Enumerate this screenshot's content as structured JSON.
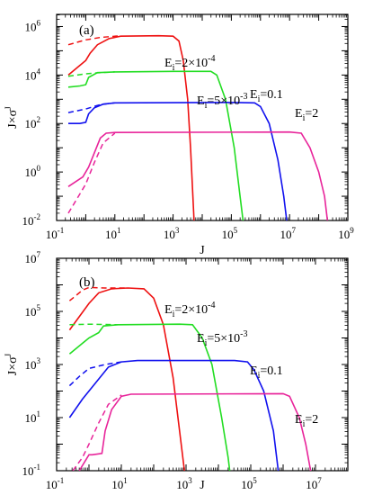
{
  "chart_data": [
    {
      "type": "line",
      "panel_label": "(a)",
      "xlabel": "J",
      "ylabel": {
        "base": "J×σ",
        "sup": "J"
      },
      "x_scale": "log",
      "y_scale": "log",
      "xlim_exp": [
        -1,
        9
      ],
      "ylim_exp": [
        -2,
        6.5
      ],
      "xticks": [
        {
          "b": "10",
          "e": "-1"
        },
        {
          "b": "10",
          "e": "1"
        },
        {
          "b": "10",
          "e": "3"
        },
        {
          "b": "10",
          "e": "5"
        },
        {
          "b": "10",
          "e": "7"
        },
        {
          "b": "10",
          "e": "9"
        }
      ],
      "yticks": [
        {
          "b": "10",
          "e": "-2"
        },
        {
          "b": "10",
          "e": "0"
        },
        {
          "b": "10",
          "e": "2"
        },
        {
          "b": "10",
          "e": "4"
        },
        {
          "b": "10",
          "e": "6"
        }
      ],
      "series": [
        {
          "annotation": {
            "pre": "E",
            "sub": "i",
            "mid": "=2×10",
            "sup": "-4"
          },
          "color": "#ee1111",
          "solid": [
            [
              -0.6,
              4.0
            ],
            [
              -0.2,
              4.4
            ],
            [
              0.0,
              4.6
            ],
            [
              0.15,
              4.9
            ],
            [
              0.4,
              5.25
            ],
            [
              0.8,
              5.5
            ],
            [
              1.2,
              5.6
            ],
            [
              2.5,
              5.62
            ],
            [
              3.0,
              5.6
            ],
            [
              3.2,
              5.4
            ],
            [
              3.35,
              4.6
            ],
            [
              3.5,
              3.0
            ],
            [
              3.6,
              1.0
            ],
            [
              3.68,
              -1.0
            ],
            [
              3.72,
              -2.0
            ]
          ],
          "dashed": [
            [
              -0.6,
              5.25
            ],
            [
              0.0,
              5.45
            ],
            [
              0.5,
              5.55
            ],
            [
              1.2,
              5.62
            ]
          ]
        },
        {
          "annotation": {
            "pre": "E",
            "sub": "i",
            "mid": "=5×10",
            "sup": "-3"
          },
          "color": "#22dd22",
          "solid": [
            [
              -0.6,
              3.5
            ],
            [
              -0.2,
              3.55
            ],
            [
              0.0,
              3.6
            ],
            [
              0.1,
              3.9
            ],
            [
              0.4,
              4.1
            ],
            [
              1.0,
              4.13
            ],
            [
              3.0,
              4.15
            ],
            [
              4.3,
              4.15
            ],
            [
              4.5,
              4.0
            ],
            [
              4.8,
              3.0
            ],
            [
              5.1,
              1.0
            ],
            [
              5.3,
              -1.0
            ],
            [
              5.4,
              -2.0
            ]
          ],
          "dashed": [
            [
              -0.6,
              3.95
            ],
            [
              0.0,
              4.05
            ],
            [
              0.5,
              4.1
            ],
            [
              1.0,
              4.13
            ]
          ]
        },
        {
          "annotation": {
            "pre": "E",
            "sub": "i",
            "mid": "=0.1",
            "sup": ""
          },
          "color": "#1111ee",
          "solid": [
            [
              -0.6,
              2.0
            ],
            [
              -0.2,
              2.0
            ],
            [
              0.0,
              2.05
            ],
            [
              0.1,
              2.4
            ],
            [
              0.3,
              2.65
            ],
            [
              0.6,
              2.8
            ],
            [
              1.0,
              2.85
            ],
            [
              5.0,
              2.87
            ],
            [
              5.8,
              2.85
            ],
            [
              6.0,
              2.7
            ],
            [
              6.3,
              2.0
            ],
            [
              6.6,
              0.5
            ],
            [
              6.8,
              -1.0
            ],
            [
              6.9,
              -2.0
            ]
          ],
          "dashed": [
            [
              -0.6,
              2.45
            ],
            [
              0.0,
              2.6
            ],
            [
              0.5,
              2.78
            ],
            [
              1.0,
              2.85
            ]
          ]
        },
        {
          "annotation": {
            "pre": "E",
            "sub": "i",
            "mid": "=2",
            "sup": ""
          },
          "color": "#e8249a",
          "solid": [
            [
              -0.6,
              -0.6
            ],
            [
              -0.1,
              -0.2
            ],
            [
              0.1,
              0.2
            ],
            [
              0.3,
              0.8
            ],
            [
              0.5,
              1.4
            ],
            [
              0.7,
              1.6
            ],
            [
              1.0,
              1.63
            ],
            [
              7.0,
              1.65
            ],
            [
              7.4,
              1.6
            ],
            [
              7.7,
              1.0
            ],
            [
              8.0,
              0.0
            ],
            [
              8.2,
              -1.0
            ],
            [
              8.3,
              -2.0
            ]
          ],
          "dashed": [
            [
              -0.6,
              -1.7
            ],
            [
              -0.3,
              -1.1
            ],
            [
              0.0,
              -0.5
            ],
            [
              0.3,
              0.4
            ],
            [
              0.6,
              1.2
            ],
            [
              1.0,
              1.6
            ]
          ]
        }
      ]
    },
    {
      "type": "line",
      "panel_label": "(b)",
      "xlabel": "J",
      "ylabel": {
        "base": "J×σ",
        "sup": "J"
      },
      "x_scale": "log",
      "y_scale": "log",
      "xlim_exp": [
        -1,
        8
      ],
      "ylim_exp": [
        -1,
        7
      ],
      "xticks": [
        {
          "b": "10",
          "e": "-1"
        },
        {
          "b": "10",
          "e": "1"
        },
        {
          "b": "10",
          "e": "3"
        },
        {
          "b": "10",
          "e": "5"
        },
        {
          "b": "10",
          "e": "7"
        }
      ],
      "yticks": [
        {
          "b": "10",
          "e": "-1"
        },
        {
          "b": "10",
          "e": "1"
        },
        {
          "b": "10",
          "e": "3"
        },
        {
          "b": "10",
          "e": "5"
        },
        {
          "b": "10",
          "e": "7"
        }
      ],
      "series": [
        {
          "annotation": {
            "pre": "E",
            "sub": "i",
            "mid": "=2×10",
            "sup": "-4"
          },
          "color": "#ee1111",
          "solid": [
            [
              -0.6,
              4.3
            ],
            [
              -0.3,
              4.8
            ],
            [
              0.0,
              5.3
            ],
            [
              0.3,
              5.7
            ],
            [
              0.7,
              5.85
            ],
            [
              1.2,
              5.88
            ],
            [
              1.7,
              5.85
            ],
            [
              2.0,
              5.5
            ],
            [
              2.3,
              4.5
            ],
            [
              2.6,
              2.5
            ],
            [
              2.8,
              0.5
            ],
            [
              2.9,
              -0.5
            ],
            [
              2.95,
              -1.0
            ]
          ],
          "dashed": [
            [
              -0.6,
              5.4
            ],
            [
              -0.2,
              5.8
            ],
            [
              0.0,
              5.9
            ],
            [
              0.5,
              5.88
            ],
            [
              1.2,
              5.88
            ]
          ]
        },
        {
          "annotation": {
            "pre": "E",
            "sub": "i",
            "mid": "=5×10",
            "sup": "-3"
          },
          "color": "#22dd22",
          "solid": [
            [
              -0.6,
              3.4
            ],
            [
              -0.2,
              3.8
            ],
            [
              0.0,
              4.0
            ],
            [
              0.3,
              4.2
            ],
            [
              0.45,
              4.45
            ],
            [
              0.9,
              4.5
            ],
            [
              2.8,
              4.52
            ],
            [
              3.2,
              4.5
            ],
            [
              3.5,
              4.0
            ],
            [
              3.8,
              3.0
            ],
            [
              4.1,
              1.0
            ],
            [
              4.3,
              -0.5
            ],
            [
              4.35,
              -1.0
            ]
          ],
          "dashed": [
            [
              -0.6,
              4.5
            ],
            [
              0.0,
              4.52
            ],
            [
              0.9,
              4.5
            ]
          ]
        },
        {
          "annotation": {
            "pre": "E",
            "sub": "i",
            "mid": "=0.1",
            "sup": ""
          },
          "color": "#1111ee",
          "solid": [
            [
              -0.6,
              1.0
            ],
            [
              -0.2,
              1.7
            ],
            [
              0.0,
              2.0
            ],
            [
              0.2,
              2.3
            ],
            [
              0.6,
              2.9
            ],
            [
              1.0,
              3.1
            ],
            [
              1.5,
              3.15
            ],
            [
              4.5,
              3.15
            ],
            [
              4.9,
              3.1
            ],
            [
              5.1,
              2.8
            ],
            [
              5.4,
              2.0
            ],
            [
              5.7,
              0.5
            ],
            [
              5.85,
              -1.0
            ]
          ],
          "dashed": [
            [
              -0.6,
              2.2
            ],
            [
              -0.3,
              2.55
            ],
            [
              0.0,
              2.85
            ],
            [
              0.5,
              3.0
            ],
            [
              1.0,
              3.1
            ]
          ]
        },
        {
          "annotation": {
            "pre": "E",
            "sub": "i",
            "mid": "=2",
            "sup": ""
          },
          "color": "#e8249a",
          "solid": [
            [
              -0.3,
              -1.0
            ],
            [
              0.0,
              -0.4
            ],
            [
              0.1,
              -0.4
            ],
            [
              0.4,
              -0.35
            ],
            [
              0.5,
              0.5
            ],
            [
              0.7,
              1.3
            ],
            [
              1.0,
              1.8
            ],
            [
              1.3,
              1.88
            ],
            [
              6.0,
              1.9
            ],
            [
              6.2,
              1.8
            ],
            [
              6.5,
              1.0
            ],
            [
              6.7,
              0.0
            ],
            [
              6.85,
              -1.0
            ]
          ],
          "dashed": [
            [
              -0.5,
              -1.0
            ],
            [
              -0.2,
              -0.5
            ],
            [
              0.0,
              0.0
            ],
            [
              0.3,
              0.8
            ],
            [
              0.6,
              1.5
            ],
            [
              1.0,
              1.85
            ]
          ]
        }
      ]
    }
  ]
}
